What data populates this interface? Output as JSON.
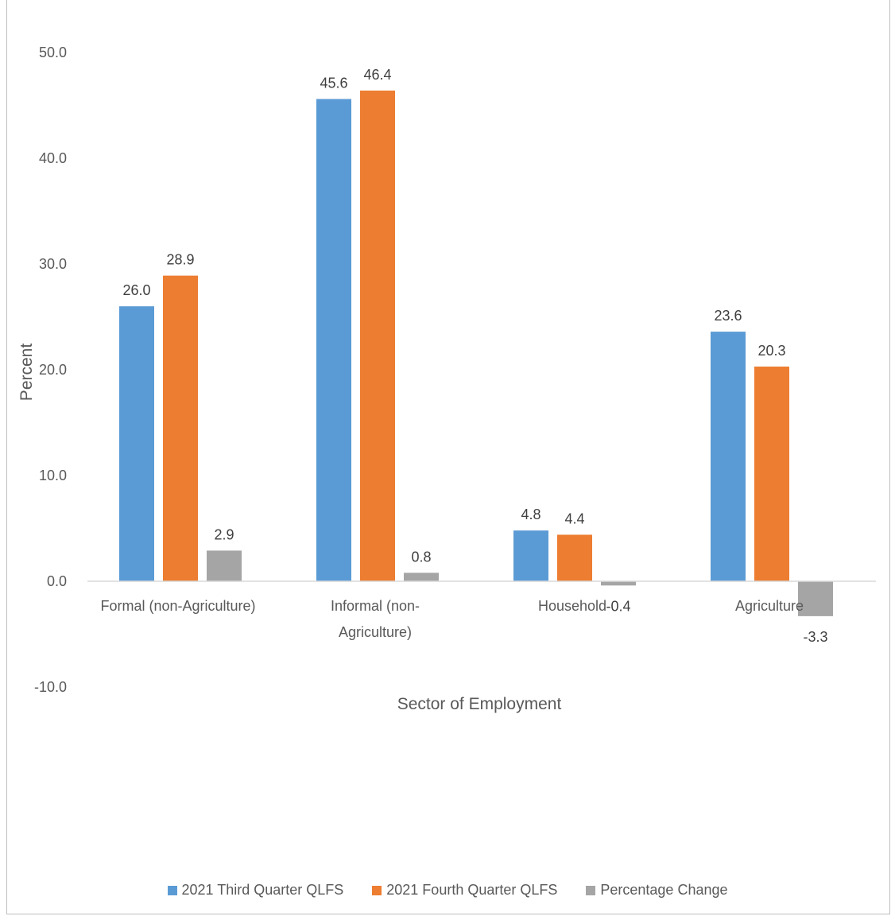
{
  "chart_data": {
    "type": "bar",
    "categories": [
      "Formal (non-Agriculture)",
      "Informal (non-Agriculture)",
      "Household",
      "Agriculture"
    ],
    "category_lines": [
      [
        "Formal (non-Agriculture)"
      ],
      [
        "Informal (non-",
        "Agriculture)"
      ],
      [
        "Household"
      ],
      [
        "Agriculture"
      ]
    ],
    "series": [
      {
        "name": "2021 Third Quarter QLFS",
        "values": [
          26.0,
          45.6,
          4.8,
          23.6
        ],
        "color": "#5b9bd5"
      },
      {
        "name": "2021 Fourth Quarter QLFS",
        "values": [
          28.9,
          46.4,
          4.4,
          20.3
        ],
        "color": "#ed7d31"
      },
      {
        "name": "Percentage Change",
        "values": [
          2.9,
          0.8,
          -0.4,
          -3.3
        ],
        "color": "#a5a5a5"
      }
    ],
    "data_labels": [
      [
        "26.0",
        "45.6",
        "4.8",
        "23.6"
      ],
      [
        "28.9",
        "46.4",
        "4.4",
        "20.3"
      ],
      [
        "2.9",
        "0.8",
        "-0.4",
        "-3.3"
      ]
    ],
    "xlabel": "Sector of Employment",
    "ylabel": "Percent",
    "ylim": [
      -10,
      50
    ],
    "yticks": [
      -10,
      0,
      10,
      20,
      30,
      40,
      50
    ],
    "ytick_labels": [
      "-10.0",
      "0.0",
      "10.0",
      "20.0",
      "30.0",
      "40.0",
      "50.0"
    ],
    "grid": false,
    "legend_position": "bottom"
  }
}
